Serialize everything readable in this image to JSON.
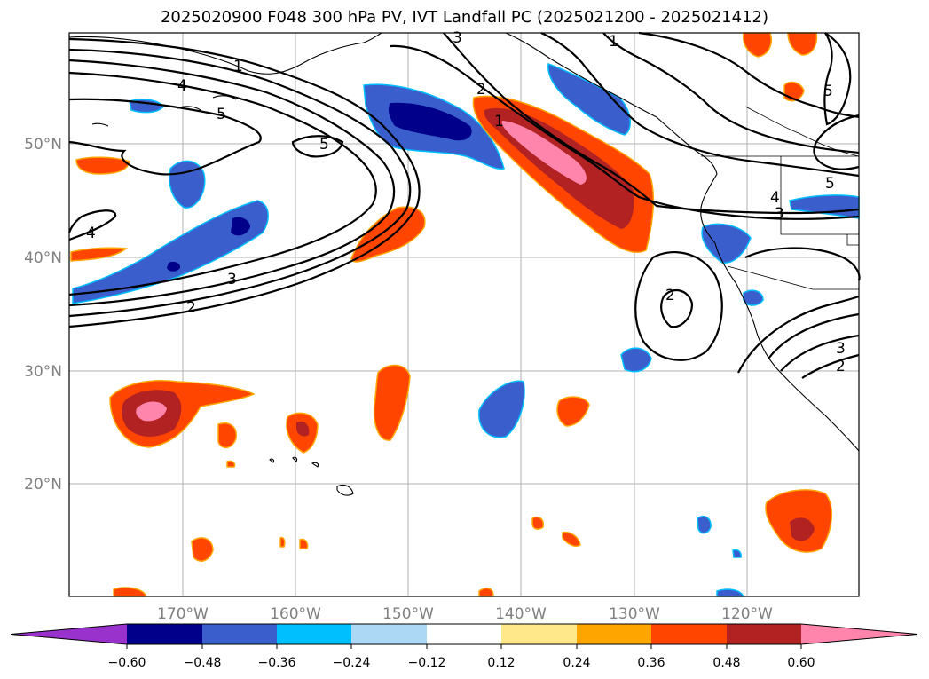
{
  "title": "2025020900 F048 300 hPa PV, IVT Landfall PC (2025021200 - 2025021412)",
  "map": {
    "lat_ticks": [
      "50°N",
      "40°N",
      "30°N",
      "20°N"
    ],
    "lon_ticks": [
      "170°W",
      "160°W",
      "150°W",
      "140°W",
      "130°W",
      "120°W"
    ],
    "contour_labels": [
      "1",
      "4",
      "5",
      "5",
      "4",
      "3",
      "2",
      "2",
      "1",
      "3",
      "1",
      "5",
      "2",
      "4",
      "3",
      "5",
      "3",
      "2"
    ]
  },
  "colorbar": {
    "tick_labels": [
      "−0.60",
      "−0.48",
      "−0.36",
      "−0.24",
      "−0.12",
      "0.12",
      "0.24",
      "0.36",
      "0.48",
      "0.60"
    ],
    "colors": [
      "#9932cc",
      "#00008b",
      "#3a5fcd",
      "#00bfff",
      "#add8f5",
      "#ffffff",
      "#ffe88a",
      "#ffa500",
      "#ff4500",
      "#b22222",
      "#ff85ad"
    ]
  }
}
